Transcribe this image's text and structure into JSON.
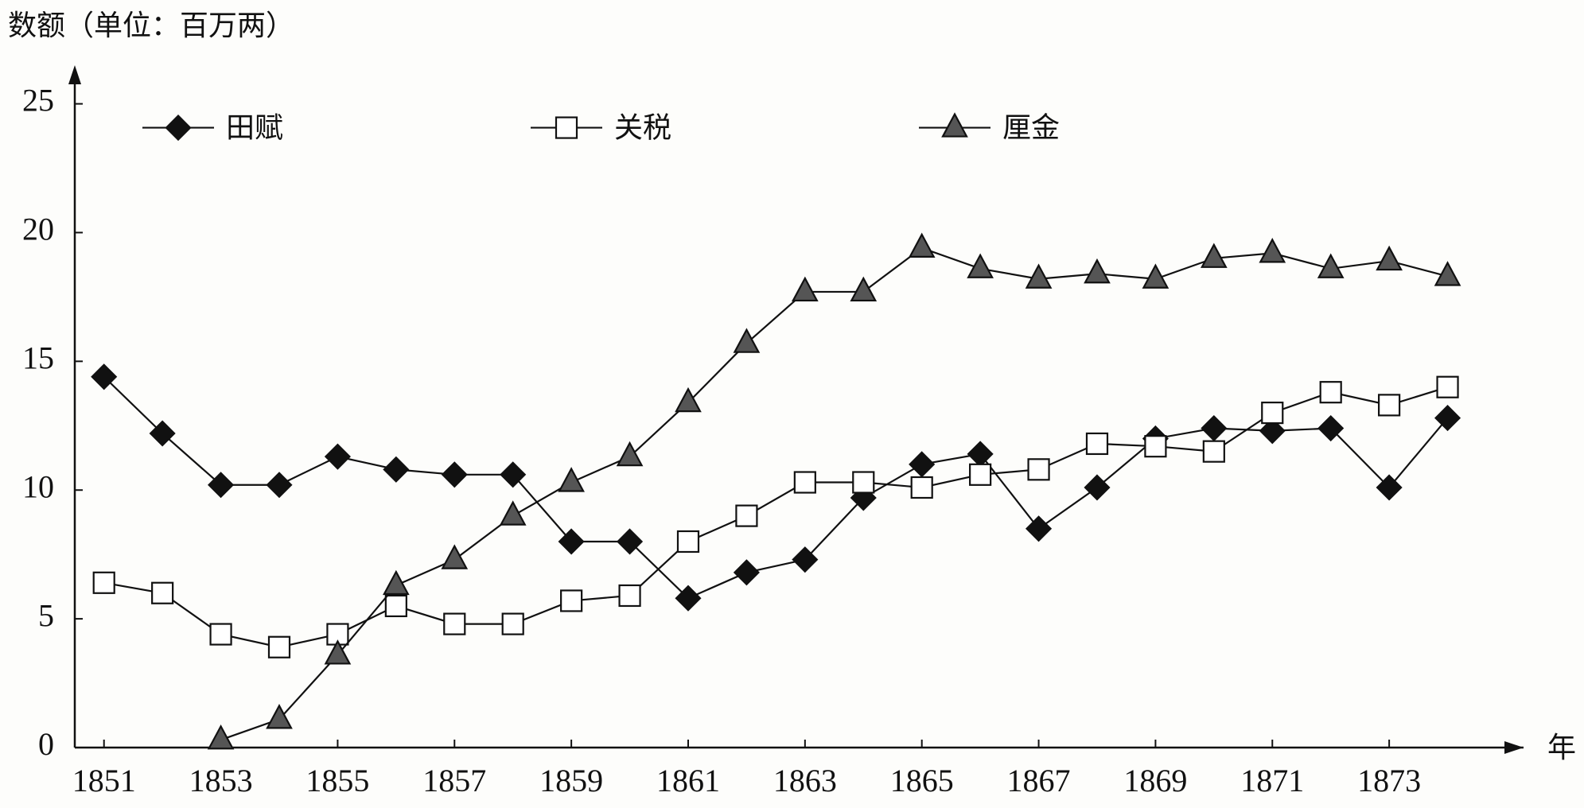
{
  "chart_data": {
    "type": "line",
    "title": "数额（单位：百万两）",
    "x_label": "年",
    "x": [
      1851,
      1852,
      1853,
      1854,
      1855,
      1856,
      1857,
      1858,
      1859,
      1860,
      1861,
      1862,
      1863,
      1864,
      1865,
      1866,
      1867,
      1868,
      1869,
      1870,
      1871,
      1872,
      1873,
      1874
    ],
    "series": [
      {
        "name": "田赋",
        "color": "#111111",
        "marker": "diamond",
        "values": [
          14.4,
          12.2,
          10.2,
          10.2,
          11.3,
          10.8,
          10.6,
          10.6,
          8.0,
          8.0,
          5.8,
          6.8,
          7.3,
          9.7,
          11.0,
          11.4,
          8.5,
          10.1,
          12.0,
          12.4,
          12.3,
          12.4,
          10.1,
          12.8
        ]
      },
      {
        "name": "关税",
        "color": "#ffffff",
        "marker": "square",
        "values": [
          6.4,
          6.0,
          4.4,
          3.9,
          4.4,
          5.5,
          4.8,
          4.8,
          5.7,
          5.9,
          8.0,
          9.0,
          10.3,
          10.3,
          10.1,
          10.6,
          10.8,
          11.8,
          11.7,
          11.5,
          13.0,
          13.8,
          13.3,
          14.0
        ]
      },
      {
        "name": "厘金",
        "color": "#555555",
        "marker": "triangle",
        "values": [
          null,
          null,
          0.3,
          1.1,
          3.6,
          6.3,
          7.3,
          9.0,
          10.3,
          11.3,
          13.4,
          15.7,
          17.7,
          17.7,
          19.4,
          18.6,
          18.2,
          18.4,
          18.2,
          19.0,
          19.2,
          18.6,
          18.9,
          18.3
        ]
      }
    ],
    "xlim": [
      1850.5,
      1875.3
    ],
    "xticks": [
      1851,
      1853,
      1855,
      1857,
      1859,
      1861,
      1863,
      1865,
      1867,
      1869,
      1871,
      1873
    ],
    "ylim": [
      0,
      26.5
    ],
    "yticks": [
      0,
      5,
      10,
      15,
      20,
      25
    ],
    "legend": "top-left"
  }
}
